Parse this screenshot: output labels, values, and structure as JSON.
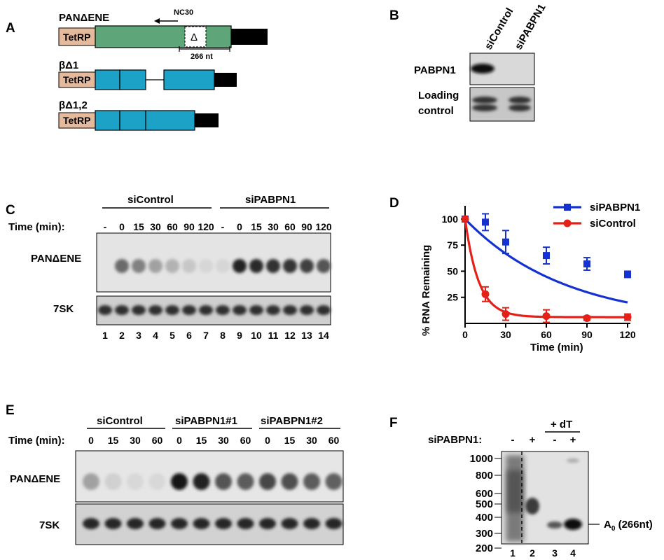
{
  "panels": {
    "a": "A",
    "b": "B",
    "c": "C",
    "d": "D",
    "e": "E",
    "f": "F"
  },
  "panel_a": {
    "constructs": [
      {
        "name": "PANΔENE",
        "promoter": "TetRP",
        "primer": "NC30",
        "deletion_symbol": "Δ",
        "length_label": "266 nt"
      },
      {
        "name": "βΔ1",
        "promoter": "TetRP"
      },
      {
        "name": "βΔ1,2",
        "promoter": "TetRP"
      }
    ],
    "colors": {
      "promoter": "#e5b99c",
      "pan": "#5fa57a",
      "beta": "#1ba2c6",
      "tail": "#000000"
    }
  },
  "panel_b": {
    "lanes": [
      "siControl",
      "siPABPN1"
    ],
    "rows": [
      "PABPN1",
      "Loading control"
    ],
    "row_lines": {
      "PABPN1": [
        "PABPN1"
      ],
      "Loading control": [
        "Loading",
        "control"
      ]
    }
  },
  "panel_c": {
    "groups": [
      "siControl",
      "siPABPN1"
    ],
    "time_label": "Time (min):",
    "times": [
      "-",
      "0",
      "15",
      "30",
      "60",
      "90",
      "120",
      "-",
      "0",
      "15",
      "30",
      "60",
      "90",
      "120"
    ],
    "rows": [
      "PANΔENE",
      "7SK"
    ],
    "lane_numbers": [
      "1",
      "2",
      "3",
      "4",
      "5",
      "6",
      "7",
      "8",
      "9",
      "10",
      "11",
      "12",
      "13",
      "14"
    ],
    "pan_intensity": [
      0,
      0.55,
      0.45,
      0.3,
      0.22,
      0.12,
      0.05,
      0.05,
      0.9,
      0.85,
      0.82,
      0.8,
      0.75,
      0.65
    ]
  },
  "panel_e": {
    "groups": [
      "siControl",
      "siPABPN1#1",
      "siPABPN1#2"
    ],
    "time_label": "Time (min):",
    "times": [
      "0",
      "15",
      "30",
      "60",
      "0",
      "15",
      "30",
      "60",
      "0",
      "15",
      "30",
      "60"
    ],
    "rows": [
      "PANΔENE",
      "7SK"
    ],
    "pan_intensity": [
      0.3,
      0.08,
      0.04,
      0.04,
      0.95,
      0.9,
      0.65,
      0.62,
      0.72,
      0.68,
      0.62,
      0.6
    ]
  },
  "panel_f": {
    "header": "+ dT",
    "row_label": "siPABPN1:",
    "conditions": [
      "-",
      "+",
      "-",
      "+"
    ],
    "lane_numbers": [
      "1",
      "2",
      "3",
      "4"
    ],
    "markers": [
      "1000",
      "800",
      "600",
      "500",
      "400",
      "300",
      "200"
    ],
    "product_label": "A",
    "product_sub": "0",
    "product_size": " (266nt)"
  },
  "chart_data": {
    "type": "line",
    "xlabel": "Time (min)",
    "ylabel": "% RNA Remaining",
    "xlim": [
      0,
      120
    ],
    "ylim": [
      0,
      110
    ],
    "xticks": [
      0,
      30,
      60,
      90,
      120
    ],
    "yticks": [
      25,
      50,
      75,
      100
    ],
    "legend_position": "top-right",
    "series": [
      {
        "name": "siPABPN1",
        "color": "#1432d2",
        "marker": "square",
        "x": [
          0,
          15,
          30,
          60,
          90,
          120
        ],
        "y": [
          100,
          97,
          78,
          65,
          57,
          47
        ],
        "err": [
          0,
          8,
          11,
          8,
          6,
          3
        ],
        "fit": "exp_decay",
        "fit_k": 0.0134
      },
      {
        "name": "siControl",
        "color": "#e32119",
        "marker": "circle",
        "x": [
          0,
          15,
          30,
          60,
          90,
          120
        ],
        "y": [
          100,
          28,
          9,
          7,
          5,
          6
        ],
        "err": [
          0,
          7,
          6,
          6,
          2,
          3
        ],
        "fit": "exp_decay_plateau",
        "fit_k": 0.1,
        "plateau": 6
      }
    ]
  }
}
